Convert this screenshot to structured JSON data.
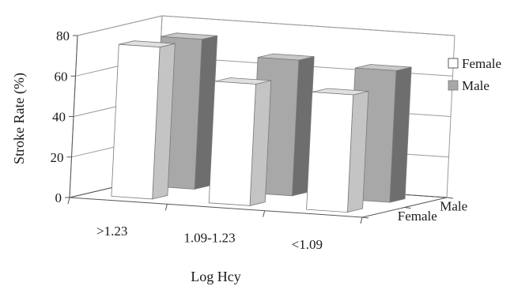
{
  "chart_data": {
    "type": "bar",
    "title": "",
    "xlabel": "Log Hcy",
    "ylabel": "Stroke Rate (%)",
    "ylim": [
      0,
      80
    ],
    "yticks": [
      "0",
      "20",
      "40",
      "60",
      "80"
    ],
    "categories": [
      ">1.23",
      "1.09-1.23",
      "<1.09"
    ],
    "depth_labels": [
      "Male",
      "Female"
    ],
    "legend": [
      "Female",
      "Male"
    ],
    "legend_position": "right",
    "grid": true,
    "projection": "3d",
    "series": [
      {
        "name": "Female",
        "values": [
          75,
          60,
          58
        ],
        "color": "#ffffff"
      },
      {
        "name": "Male",
        "values": [
          74,
          67,
          65
        ],
        "color": "#a8a8a8"
      }
    ]
  }
}
